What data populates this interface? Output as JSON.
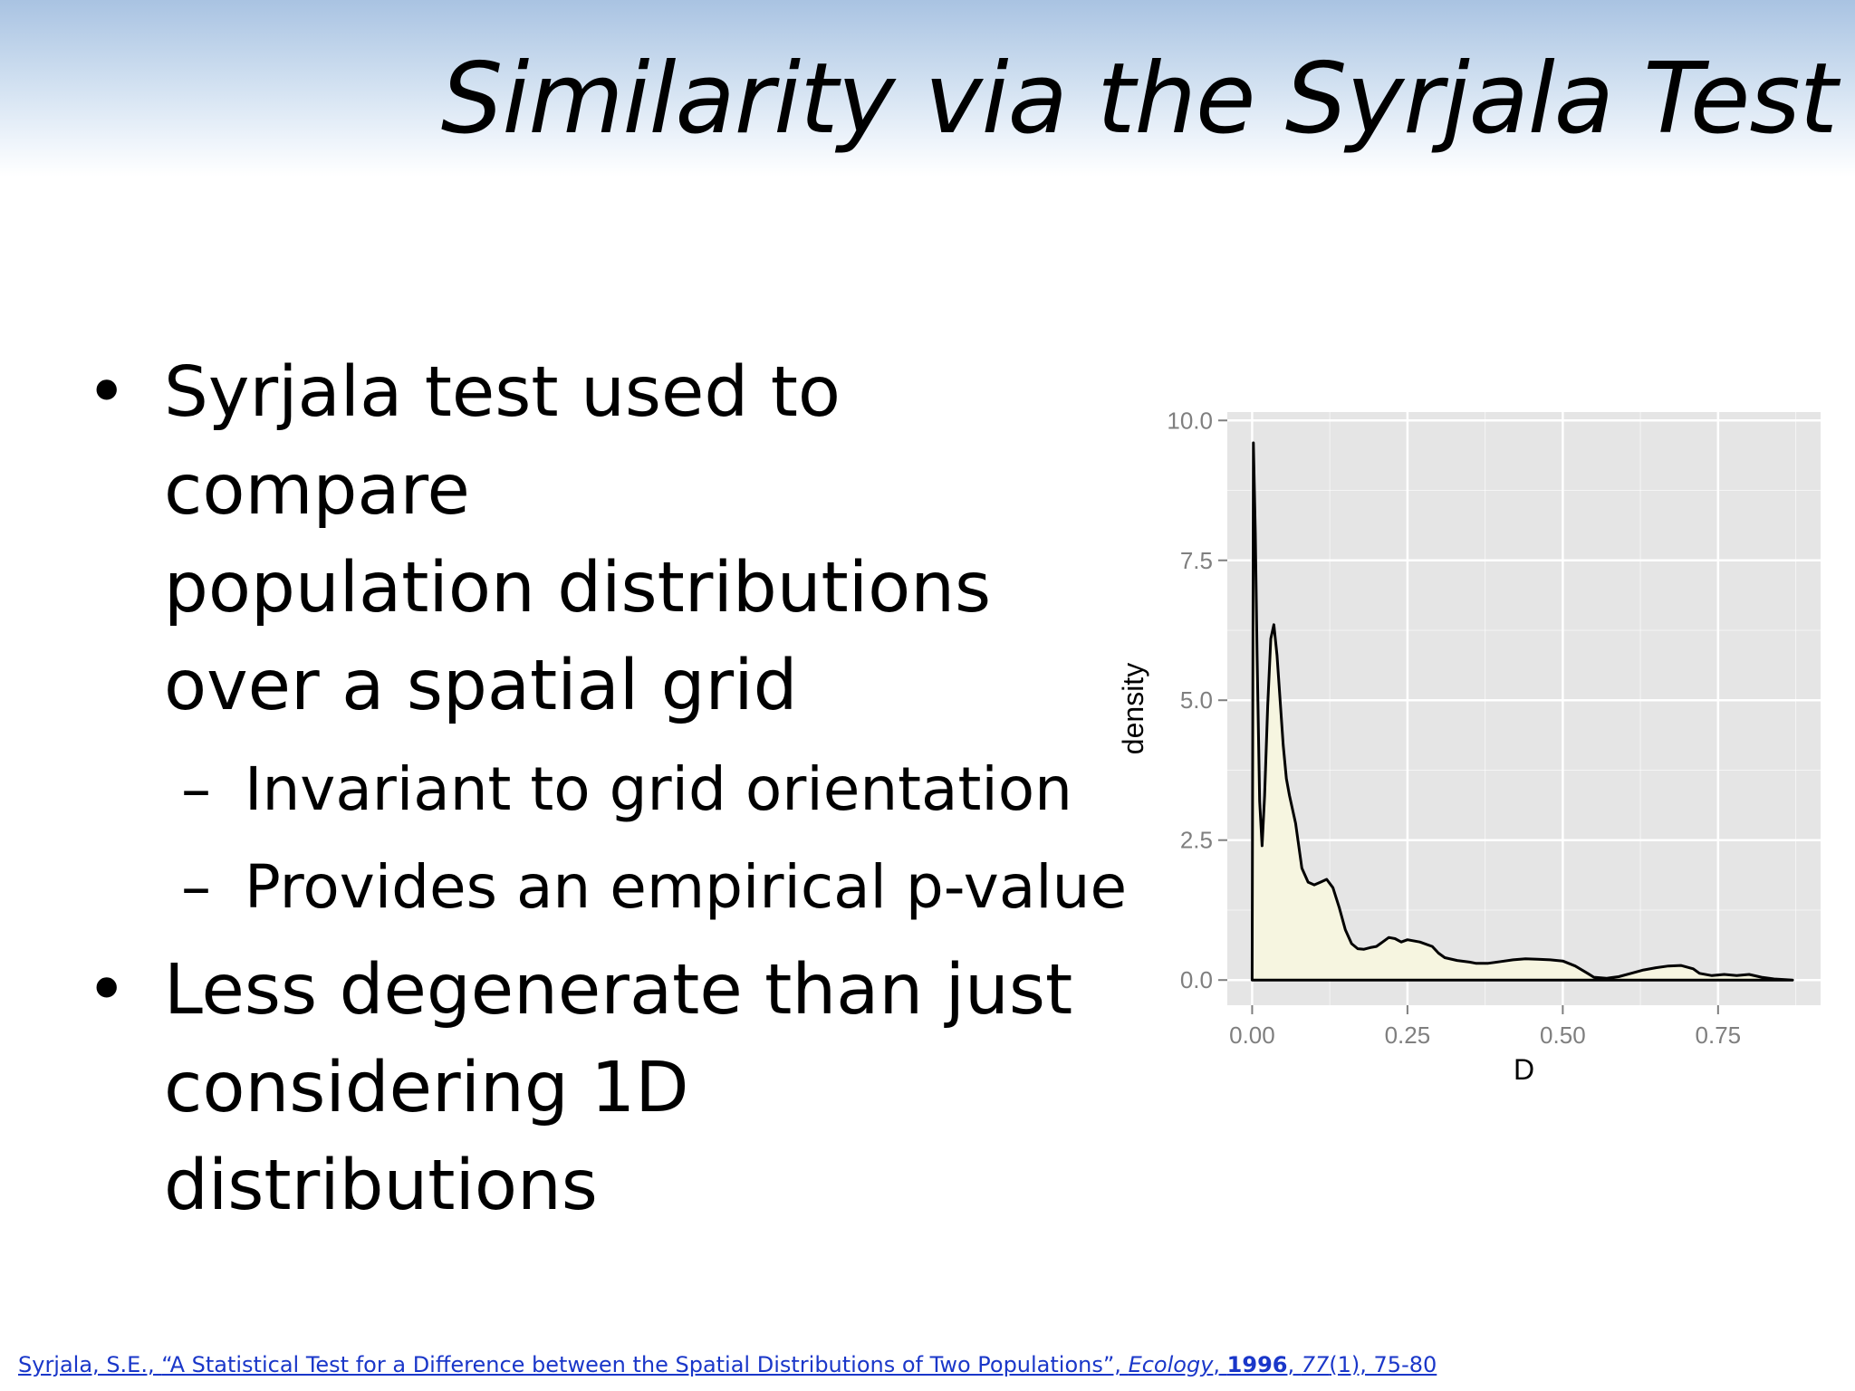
{
  "slide": {
    "title": "Similarity via the Syrjala Test",
    "bullet_glyph": "•",
    "dash_glyph": "–",
    "bullets": [
      {
        "lines": [
          "Syrjala test used to compare",
          "population distributions",
          "over a spatial grid"
        ],
        "subs": [
          "Invariant to grid orientation",
          "Provides an empirical p-value"
        ]
      },
      {
        "lines": [
          "Less degenerate than just",
          "considering 1D distributions"
        ],
        "subs": []
      }
    ],
    "citation": {
      "authors": "Syrjala, S.E., ",
      "title": "“A Statistical Test for a Difference between the Spatial Distributions of Two Populations”, ",
      "journal": "Ecology",
      "sep1": ", ",
      "year": "1996",
      "sep2": ", ",
      "volume": "77",
      "rest": "(1), 75-80"
    }
  },
  "chart_data": {
    "type": "area",
    "xlabel": "D",
    "ylabel": "density",
    "xlim": [
      -0.04,
      0.915
    ],
    "ylim": [
      -0.45,
      10.15
    ],
    "xticks": [
      0.0,
      0.25,
      0.5,
      0.75
    ],
    "xtick_labels": [
      "0.00",
      "0.25",
      "0.50",
      "0.75"
    ],
    "yticks": [
      0.0,
      2.5,
      5.0,
      7.5,
      10.0
    ],
    "ytick_labels": [
      "0.0",
      "2.5",
      "5.0",
      "7.5",
      "10.0"
    ],
    "grid": true,
    "colors": {
      "panel": "#e5e5e5",
      "grid": "#ffffff",
      "fill": "#f6f5e0",
      "line": "#000000",
      "tick_text": "#7f7f7f",
      "tick": "#7f7f7f"
    },
    "x": [
      0.0,
      0.002,
      0.005,
      0.008,
      0.012,
      0.016,
      0.02,
      0.025,
      0.03,
      0.035,
      0.04,
      0.045,
      0.05,
      0.055,
      0.06,
      0.07,
      0.08,
      0.09,
      0.1,
      0.11,
      0.12,
      0.13,
      0.14,
      0.15,
      0.16,
      0.17,
      0.18,
      0.19,
      0.2,
      0.21,
      0.22,
      0.23,
      0.24,
      0.25,
      0.27,
      0.29,
      0.3,
      0.31,
      0.33,
      0.35,
      0.36,
      0.38,
      0.4,
      0.42,
      0.44,
      0.46,
      0.48,
      0.5,
      0.52,
      0.54,
      0.55,
      0.57,
      0.59,
      0.61,
      0.63,
      0.65,
      0.67,
      0.69,
      0.71,
      0.72,
      0.74,
      0.76,
      0.78,
      0.8,
      0.82,
      0.84,
      0.87
    ],
    "values": [
      0.0,
      9.6,
      8.0,
      5.8,
      3.2,
      2.4,
      3.3,
      4.9,
      6.1,
      6.35,
      5.8,
      5.0,
      4.2,
      3.6,
      3.3,
      2.8,
      2.0,
      1.75,
      1.7,
      1.75,
      1.8,
      1.65,
      1.3,
      0.9,
      0.65,
      0.56,
      0.55,
      0.58,
      0.6,
      0.68,
      0.76,
      0.74,
      0.68,
      0.72,
      0.68,
      0.6,
      0.48,
      0.4,
      0.35,
      0.32,
      0.3,
      0.3,
      0.33,
      0.36,
      0.38,
      0.37,
      0.36,
      0.34,
      0.25,
      0.12,
      0.05,
      0.03,
      0.06,
      0.12,
      0.18,
      0.22,
      0.25,
      0.26,
      0.2,
      0.12,
      0.08,
      0.1,
      0.08,
      0.1,
      0.05,
      0.02,
      0.0
    ]
  }
}
